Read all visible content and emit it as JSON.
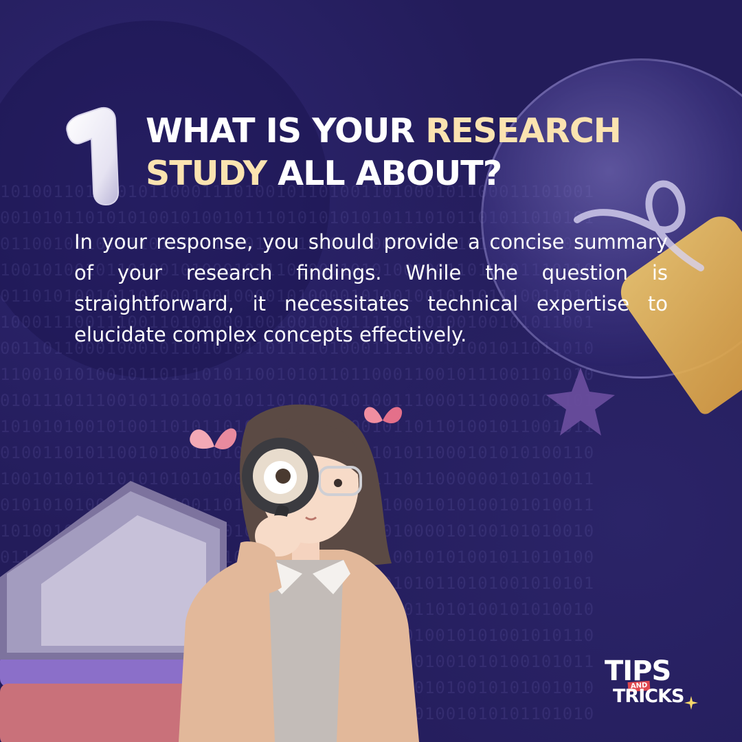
{
  "heading": {
    "number": "1",
    "line1_white": "WHAT IS YOUR ",
    "line1_highlight": "RESEARCH",
    "line2_highlight": "STUDY",
    "line2_white": " ALL ABOUT?"
  },
  "body": {
    "text": "In your response, you should provide a concise summary of your research findings. While the question is straightforward, it necessitates technical expertise to elucidate complex concepts effectively."
  },
  "logo": {
    "tips": "TIPS",
    "and": "AND",
    "tricks": "TRICKS"
  },
  "colors": {
    "background": "#231c5a",
    "highlight": "#fbe3b0",
    "text": "#ffffff",
    "logo_accent": "#e0484f"
  },
  "icons": {
    "number_badge": "number-one-3d-icon",
    "lightbulb": "lightbulb-icon",
    "star": "star-icon",
    "book": "open-book-icon",
    "butterflies": "butterfly-icon",
    "sparkle": "sparkle-icon",
    "character": "woman-with-magnifier-illustration"
  }
}
